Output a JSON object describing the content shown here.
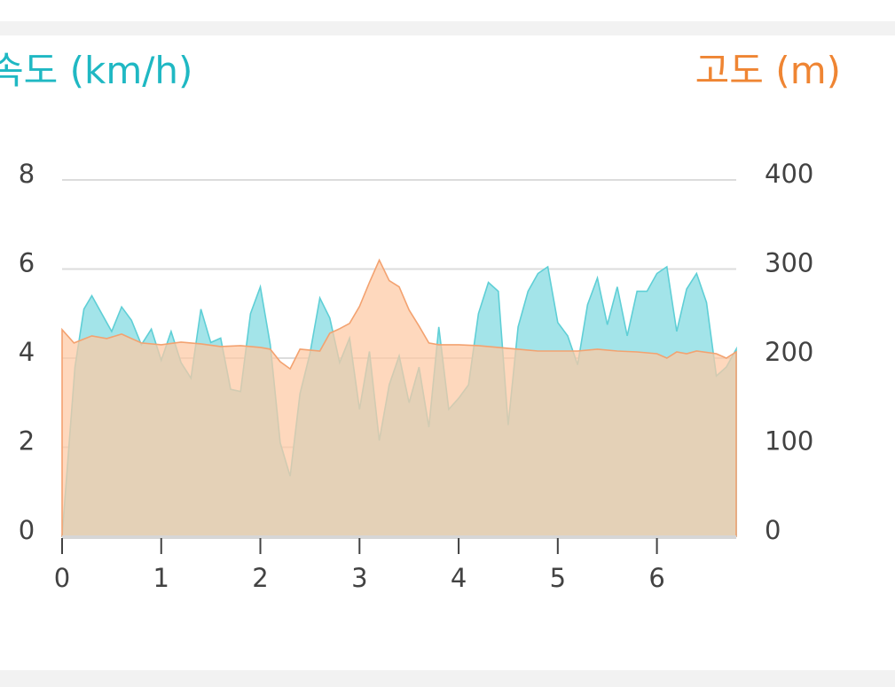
{
  "chart_data": {
    "type": "area",
    "left_axis": {
      "label": "속도 (km/h)",
      "min": 0,
      "max": 8,
      "ticks": [
        0,
        2,
        4,
        6,
        8
      ],
      "color": "#1fb8c3"
    },
    "right_axis": {
      "label": "고도 (m)",
      "min": 0,
      "max": 400,
      "ticks": [
        0,
        100,
        200,
        300,
        400
      ],
      "color": "#ef8533"
    },
    "x_axis": {
      "min": 0,
      "max": 6.8,
      "ticks": [
        0,
        1,
        2,
        3,
        4,
        5,
        6
      ]
    },
    "grid": true,
    "series": [
      {
        "name": "속도 (km/h)",
        "axis": "left",
        "fill": "#a3e4e9",
        "stroke": "#5fcfd6",
        "points": [
          [
            0,
            0
          ],
          [
            0.13,
            3.8
          ],
          [
            0.22,
            5.1
          ],
          [
            0.3,
            5.4
          ],
          [
            0.4,
            5.0
          ],
          [
            0.5,
            4.6
          ],
          [
            0.6,
            5.15
          ],
          [
            0.7,
            4.85
          ],
          [
            0.8,
            4.3
          ],
          [
            0.9,
            4.65
          ],
          [
            1.0,
            3.95
          ],
          [
            1.1,
            4.6
          ],
          [
            1.2,
            3.9
          ],
          [
            1.3,
            3.55
          ],
          [
            1.4,
            5.1
          ],
          [
            1.5,
            4.35
          ],
          [
            1.6,
            4.45
          ],
          [
            1.7,
            3.3
          ],
          [
            1.8,
            3.25
          ],
          [
            1.9,
            5.0
          ],
          [
            2.0,
            5.6
          ],
          [
            2.1,
            4.3
          ],
          [
            2.2,
            2.1
          ],
          [
            2.3,
            1.35
          ],
          [
            2.4,
            3.2
          ],
          [
            2.5,
            4.1
          ],
          [
            2.6,
            5.35
          ],
          [
            2.7,
            4.9
          ],
          [
            2.8,
            3.9
          ],
          [
            2.9,
            4.45
          ],
          [
            3.0,
            2.85
          ],
          [
            3.1,
            4.15
          ],
          [
            3.2,
            2.15
          ],
          [
            3.3,
            3.4
          ],
          [
            3.4,
            4.05
          ],
          [
            3.5,
            3.0
          ],
          [
            3.6,
            3.8
          ],
          [
            3.7,
            2.45
          ],
          [
            3.8,
            4.7
          ],
          [
            3.9,
            2.85
          ],
          [
            4.0,
            3.1
          ],
          [
            4.1,
            3.4
          ],
          [
            4.2,
            5.0
          ],
          [
            4.3,
            5.7
          ],
          [
            4.4,
            5.5
          ],
          [
            4.5,
            2.5
          ],
          [
            4.6,
            4.7
          ],
          [
            4.7,
            5.5
          ],
          [
            4.8,
            5.9
          ],
          [
            4.9,
            6.05
          ],
          [
            5.0,
            4.8
          ],
          [
            5.1,
            4.5
          ],
          [
            5.2,
            3.85
          ],
          [
            5.3,
            5.2
          ],
          [
            5.4,
            5.8
          ],
          [
            5.5,
            4.75
          ],
          [
            5.6,
            5.6
          ],
          [
            5.7,
            4.5
          ],
          [
            5.8,
            5.5
          ],
          [
            5.9,
            5.5
          ],
          [
            6.0,
            5.9
          ],
          [
            6.1,
            6.05
          ],
          [
            6.2,
            4.6
          ],
          [
            6.3,
            5.55
          ],
          [
            6.4,
            5.9
          ],
          [
            6.5,
            5.25
          ],
          [
            6.6,
            3.6
          ],
          [
            6.7,
            3.8
          ],
          [
            6.8,
            4.2
          ]
        ]
      },
      {
        "name": "고도 (m)",
        "axis": "right",
        "fill": "#fdc9a3",
        "stroke": "#f3a270",
        "points": [
          [
            0,
            232
          ],
          [
            0.12,
            217
          ],
          [
            0.3,
            225
          ],
          [
            0.45,
            222
          ],
          [
            0.6,
            227
          ],
          [
            0.8,
            217
          ],
          [
            1.0,
            215
          ],
          [
            1.2,
            218
          ],
          [
            1.4,
            216
          ],
          [
            1.6,
            213
          ],
          [
            1.8,
            214
          ],
          [
            2.0,
            212
          ],
          [
            2.1,
            210
          ],
          [
            2.2,
            196
          ],
          [
            2.3,
            188
          ],
          [
            2.4,
            210
          ],
          [
            2.6,
            208
          ],
          [
            2.7,
            228
          ],
          [
            2.8,
            233
          ],
          [
            2.9,
            239
          ],
          [
            3.0,
            258
          ],
          [
            3.1,
            285
          ],
          [
            3.2,
            310
          ],
          [
            3.3,
            287
          ],
          [
            3.4,
            280
          ],
          [
            3.5,
            254
          ],
          [
            3.6,
            236
          ],
          [
            3.7,
            217
          ],
          [
            3.8,
            215
          ],
          [
            4.0,
            215
          ],
          [
            4.2,
            214
          ],
          [
            4.4,
            212
          ],
          [
            4.6,
            210
          ],
          [
            4.8,
            208
          ],
          [
            5.0,
            208
          ],
          [
            5.2,
            208
          ],
          [
            5.4,
            210
          ],
          [
            5.6,
            208
          ],
          [
            5.8,
            207
          ],
          [
            6.0,
            205
          ],
          [
            6.1,
            200
          ],
          [
            6.2,
            207
          ],
          [
            6.3,
            205
          ],
          [
            6.4,
            208
          ],
          [
            6.6,
            205
          ],
          [
            6.7,
            200
          ],
          [
            6.8,
            207
          ]
        ]
      }
    ]
  }
}
